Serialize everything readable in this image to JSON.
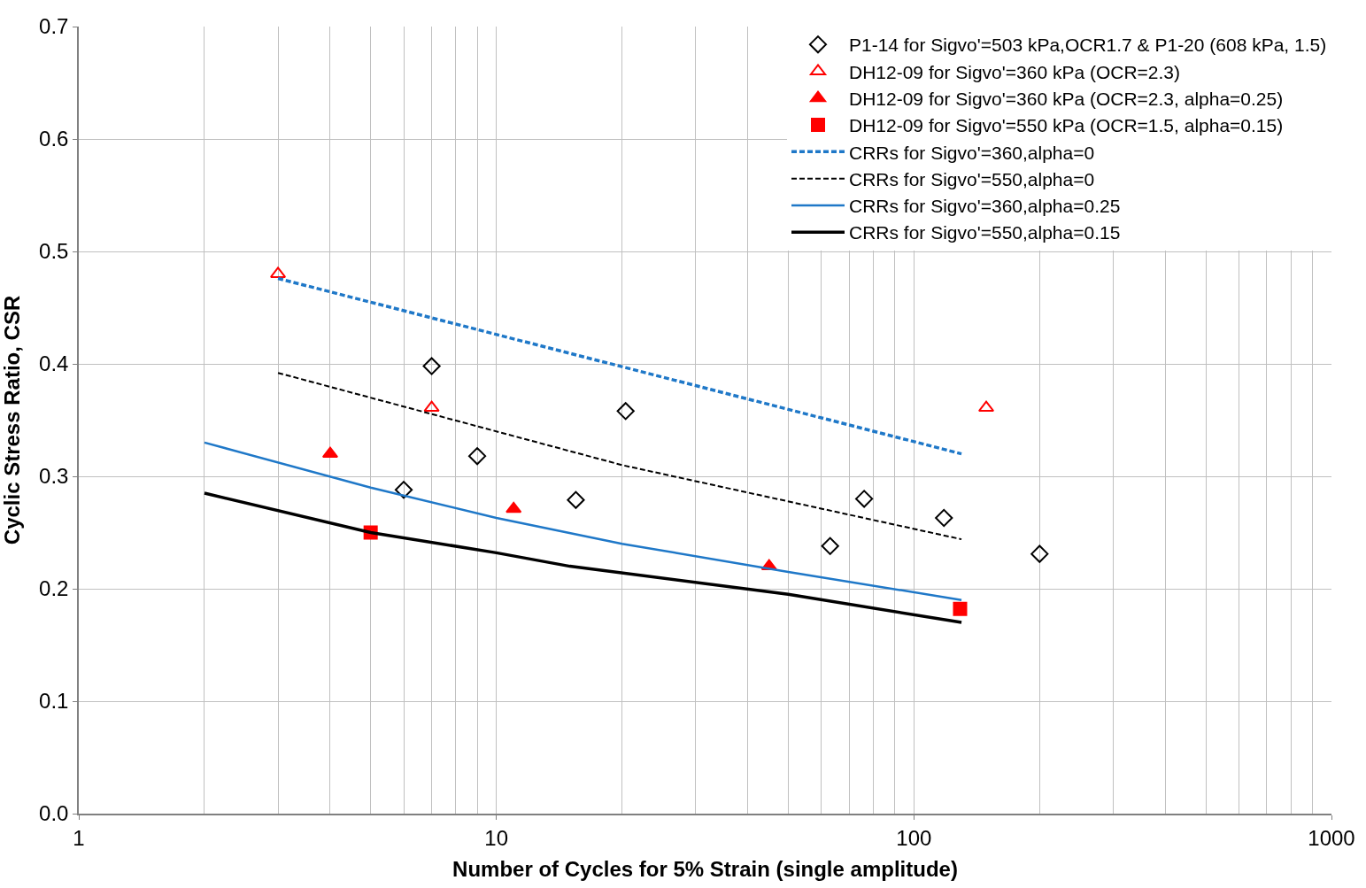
{
  "chart_data": {
    "type": "scatter",
    "xlabel": "Number of Cycles for 5% Strain (single amplitude)",
    "ylabel": "Cyclic Stress Ratio, CSR",
    "log": "x",
    "xlim": [
      1,
      1000
    ],
    "xticks": [
      1,
      10,
      100,
      1000
    ],
    "ylim": [
      0,
      0.7
    ],
    "yticks": [
      {
        "value": 0,
        "label": "0.0"
      },
      0.1,
      0.2,
      0.3,
      0.4,
      0.5,
      0.6,
      0.7
    ],
    "grid": true,
    "legend": "top right",
    "series": [
      {
        "name": "P1-14 for Sigvo'=503 kPa,OCR1.7 & P1-20 (608 kPa, 1.5)",
        "marker": "diamond",
        "color": "#000000",
        "x": [
          6,
          7,
          9,
          15.5,
          20.4,
          63,
          76,
          118,
          200
        ],
        "values": [
          0.288,
          0.398,
          0.318,
          0.279,
          0.358,
          0.238,
          0.28,
          0.263,
          0.231
        ]
      },
      {
        "name": "DH12-09 for Sigvo'=360 kPa (OCR=2.3)",
        "marker": "triangle",
        "color": "#ff0000",
        "x": [
          3,
          7,
          149
        ],
        "values": [
          0.48,
          0.361,
          0.361
        ]
      },
      {
        "name": "DH12-09 for Sigvo'=360 kPa (OCR=2.3, alpha=0.25)",
        "marker": "triangle",
        "color": "#ff0000",
        "x": [
          4,
          11,
          45
        ],
        "values": [
          0.32,
          0.271,
          0.22
        ]
      },
      {
        "name": "DH12-09 for Sigvo'=550 kPa (OCR=1.5, alpha=0.15)",
        "marker": "square",
        "color": "#ff0000",
        "x": [
          5,
          129
        ],
        "values": [
          0.25,
          0.182
        ]
      },
      {
        "name": "CRRs for Sigvo'=360,alpha=0",
        "type": "line",
        "line_style": "dashed",
        "color": "#1f78c8",
        "x": [
          3,
          130
        ],
        "values": [
          0.476,
          0.32
        ]
      },
      {
        "name": "CRRs for Sigvo'=550,alpha=0",
        "type": "line",
        "line_style": "dashed",
        "color": "#000000",
        "x": [
          3,
          20,
          130
        ],
        "values": [
          0.392,
          0.31,
          0.244
        ]
      },
      {
        "name": "CRRs for Sigvo'=360,alpha=0.25",
        "type": "line",
        "line_style": "solid",
        "color": "#1f78c8",
        "x": [
          2,
          5,
          10,
          20,
          50,
          130
        ],
        "values": [
          0.33,
          0.29,
          0.263,
          0.24,
          0.215,
          0.19
        ]
      },
      {
        "name": "CRRs for Sigvo'=550,alpha=0.15",
        "type": "line",
        "line_style": "solid",
        "color": "#000000",
        "x": [
          2,
          5,
          10,
          15,
          50,
          130
        ],
        "values": [
          0.285,
          0.25,
          0.232,
          0.22,
          0.195,
          0.17
        ]
      }
    ]
  }
}
